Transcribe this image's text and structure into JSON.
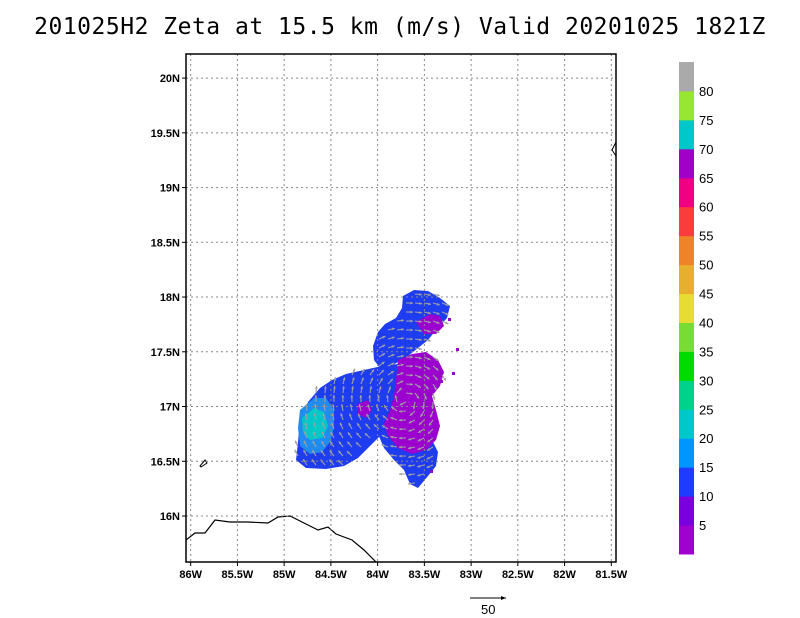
{
  "title": "201025H2 Zeta at 15.5 km (m/s) Valid 20201025 1821Z",
  "map": {
    "lon_range": [
      -86.05,
      -81.45
    ],
    "lat_range": [
      15.58,
      20.22
    ],
    "lon_ticks": [
      {
        "value": -86.0,
        "label": "86W"
      },
      {
        "value": -85.5,
        "label": "85.5W"
      },
      {
        "value": -85.0,
        "label": "85W"
      },
      {
        "value": -84.5,
        "label": "84.5W"
      },
      {
        "value": -84.0,
        "label": "84W"
      },
      {
        "value": -83.5,
        "label": "83.5W"
      },
      {
        "value": -83.0,
        "label": "83W"
      },
      {
        "value": -82.5,
        "label": "82.5W"
      },
      {
        "value": -82.0,
        "label": "82W"
      },
      {
        "value": -81.5,
        "label": "81.5W"
      }
    ],
    "lat_ticks": [
      {
        "value": 16.0,
        "label": "16N"
      },
      {
        "value": 16.5,
        "label": "16.5N"
      },
      {
        "value": 17.0,
        "label": "17N"
      },
      {
        "value": 17.5,
        "label": "17.5N"
      },
      {
        "value": 18.0,
        "label": "18N"
      },
      {
        "value": 18.5,
        "label": "18.5N"
      },
      {
        "value": 19.0,
        "label": "19N"
      },
      {
        "value": 19.5,
        "label": "19.5N"
      },
      {
        "value": 20.0,
        "label": "20N"
      }
    ],
    "grid": true
  },
  "colorbar": {
    "colors": [
      "#a000d0",
      "#7a00e0",
      "#1e3cff",
      "#0096ff",
      "#00c8c8",
      "#00d28c",
      "#00dc00",
      "#78dc32",
      "#e6dc32",
      "#e6af2d",
      "#f08228",
      "#fa3c3c",
      "#f00082",
      "#a000c8",
      "#00c8c8",
      "#96e632",
      "#aaaaaa"
    ],
    "labels": [
      "5",
      "10",
      "15",
      "20",
      "25",
      "30",
      "35",
      "40",
      "45",
      "50",
      "55",
      "60",
      "65",
      "70",
      "75",
      "80"
    ]
  },
  "vector_key": {
    "label": "50"
  },
  "colors": {
    "purple": "#9b00cf",
    "blue": "#1e3cf0",
    "light_blue": "#1e8cf0",
    "cyan": "#00c8c8",
    "arrow": "#a0a0a0",
    "coast": "#000000"
  }
}
